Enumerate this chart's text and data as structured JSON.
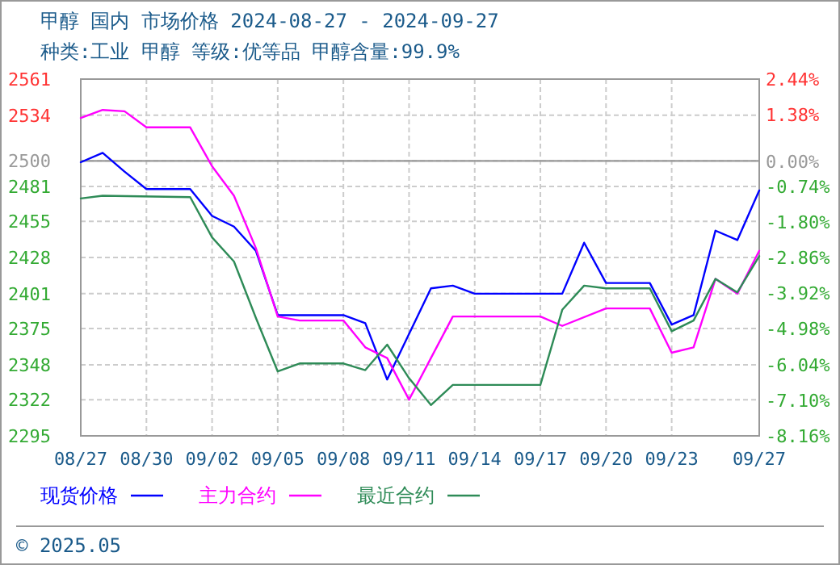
{
  "chart_data": {
    "type": "line",
    "title": "甲醇 国内 市场价格 2024-08-27 - 2024-09-27",
    "subtitle": "种类:工业 甲醇 等级:优等品 甲醇含量:99.9%",
    "annotations": [
      "© 2025.05"
    ],
    "legend": "bottom",
    "grid": true,
    "marker": "none",
    "line_style": "solid",
    "xlim": [
      "2024-08-27",
      "2024-09-27"
    ],
    "xticks": [
      {
        "value": "2024-08-27",
        "label": "08/27"
      },
      {
        "value": "2024-08-30",
        "label": "08/30"
      },
      {
        "value": "2024-09-02",
        "label": "09/02"
      },
      {
        "value": "2024-09-05",
        "label": "09/05"
      },
      {
        "value": "2024-09-08",
        "label": "09/08"
      },
      {
        "value": "2024-09-11",
        "label": "09/11"
      },
      {
        "value": "2024-09-14",
        "label": "09/14"
      },
      {
        "value": "2024-09-17",
        "label": "09/17"
      },
      {
        "value": "2024-09-20",
        "label": "09/20"
      },
      {
        "value": "2024-09-23",
        "label": "09/23"
      },
      {
        "value": "2024-09-27",
        "label": "09/27"
      }
    ],
    "ylim": [
      2295,
      2561
    ],
    "yticks": [
      2295,
      2322,
      2348,
      2375,
      2401,
      2428,
      2455,
      2481,
      2500,
      2534,
      2561
    ],
    "y2lim": [
      -8.16,
      2.44
    ],
    "y2ticks": [
      {
        "value": -8.16,
        "label": "-8.16%"
      },
      {
        "value": -7.1,
        "label": "-7.10%"
      },
      {
        "value": -6.04,
        "label": "-6.04%"
      },
      {
        "value": -4.98,
        "label": "-4.98%"
      },
      {
        "value": -3.92,
        "label": "-3.92%"
      },
      {
        "value": -2.86,
        "label": "-2.86%"
      },
      {
        "value": -1.8,
        "label": "-1.80%"
      },
      {
        "value": -0.74,
        "label": "-0.74%"
      },
      {
        "value": 0,
        "label": "0.00%"
      },
      {
        "value": 1.38,
        "label": "1.38%"
      },
      {
        "value": 2.44,
        "label": "2.44%"
      }
    ],
    "ref_lines": [
      {
        "axis": "y",
        "value": 2500,
        "color": "#999999"
      }
    ],
    "series": [
      {
        "name": "现货价格",
        "color": "#0000ff",
        "x": [
          "2024-08-27",
          "2024-08-28",
          "2024-08-29",
          "2024-08-30",
          "2024-09-01",
          "2024-09-02",
          "2024-09-03",
          "2024-09-04",
          "2024-09-05",
          "2024-09-08",
          "2024-09-09",
          "2024-09-10",
          "2024-09-12",
          "2024-09-13",
          "2024-09-14",
          "2024-09-18",
          "2024-09-19",
          "2024-09-20",
          "2024-09-22",
          "2024-09-23",
          "2024-09-24",
          "2024-09-25",
          "2024-09-26",
          "2024-09-27"
        ],
        "values": [
          2499,
          2506,
          2492,
          2479,
          2479,
          2459,
          2451,
          2433,
          2385,
          2385,
          2379,
          2337,
          2405,
          2407,
          2401,
          2401,
          2439,
          2409,
          2409,
          2378,
          2385,
          2448,
          2441,
          2478
        ]
      },
      {
        "name": "主力合约",
        "color": "#ff00ff",
        "x": [
          "2024-08-27",
          "2024-08-28",
          "2024-08-29",
          "2024-08-30",
          "2024-09-01",
          "2024-09-02",
          "2024-09-03",
          "2024-09-04",
          "2024-09-05",
          "2024-09-06",
          "2024-09-08",
          "2024-09-09",
          "2024-09-10",
          "2024-09-11",
          "2024-09-12",
          "2024-09-13",
          "2024-09-17",
          "2024-09-18",
          "2024-09-20",
          "2024-09-22",
          "2024-09-23",
          "2024-09-24",
          "2024-09-25",
          "2024-09-26",
          "2024-09-27"
        ],
        "values": [
          2532,
          2538,
          2537,
          2525,
          2525,
          2496,
          2474,
          2435,
          2384,
          2381,
          2381,
          2361,
          2353,
          2322,
          2353,
          2384,
          2384,
          2377,
          2390,
          2390,
          2357,
          2361,
          2412,
          2401,
          2433
        ]
      },
      {
        "name": "最近合约",
        "color": "#2e8b57",
        "x": [
          "2024-08-27",
          "2024-08-28",
          "2024-09-01",
          "2024-09-02",
          "2024-09-03",
          "2024-09-04",
          "2024-09-05",
          "2024-09-06",
          "2024-09-08",
          "2024-09-09",
          "2024-09-10",
          "2024-09-11",
          "2024-09-12",
          "2024-09-13",
          "2024-09-17",
          "2024-09-18",
          "2024-09-19",
          "2024-09-20",
          "2024-09-22",
          "2024-09-23",
          "2024-09-24",
          "2024-09-25",
          "2024-09-26",
          "2024-09-27"
        ],
        "values": [
          2472,
          2474,
          2473,
          2443,
          2425,
          2383,
          2343,
          2349,
          2349,
          2344,
          2363,
          2338,
          2318,
          2333,
          2333,
          2389,
          2407,
          2405,
          2405,
          2373,
          2381,
          2412,
          2402,
          2429
        ]
      }
    ]
  }
}
